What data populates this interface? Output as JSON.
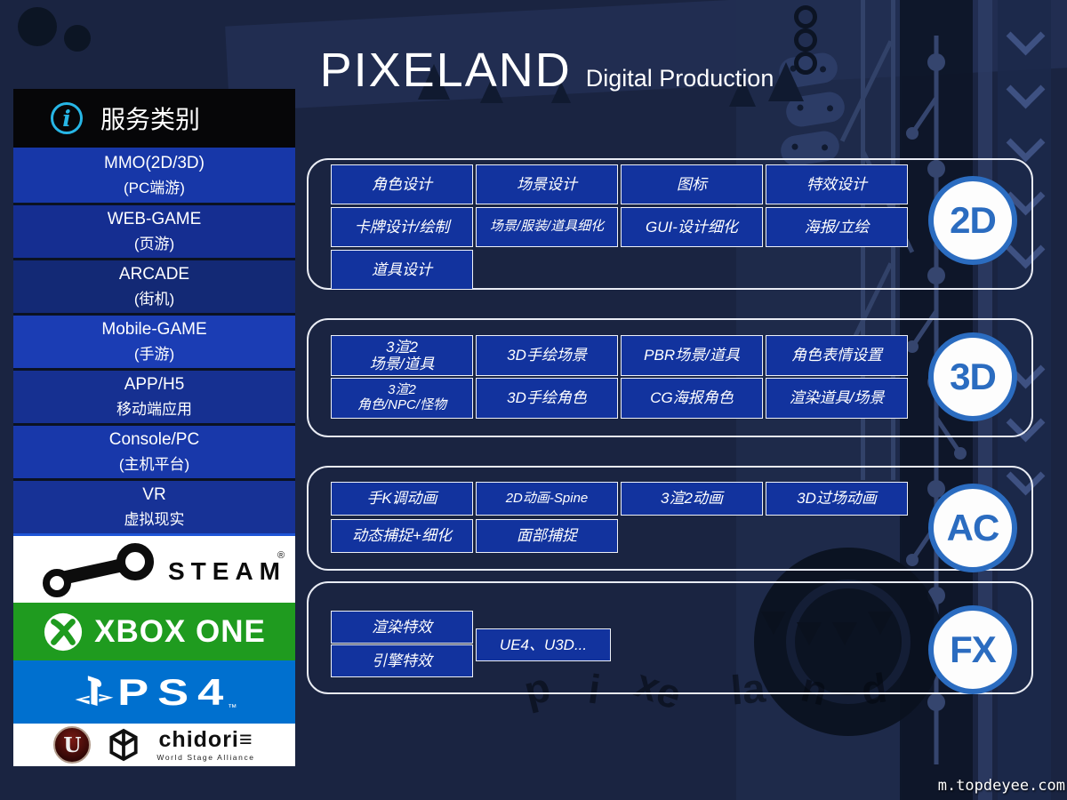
{
  "header": {
    "title": "PIXELAND",
    "subtitle": "Digital Production"
  },
  "watermark": "m.topdeyee.com",
  "sidebar": {
    "header": {
      "label": "服务类别",
      "icon_glyph": "i"
    },
    "items": [
      {
        "id": "mmo-pc",
        "line1": "MMO(2D/3D)",
        "line2": "(PC端游)"
      },
      {
        "id": "web-game",
        "line1": "WEB-GAME",
        "line2": "(页游)"
      },
      {
        "id": "arcade",
        "line1": "ARCADE",
        "line2": "(街机)"
      },
      {
        "id": "mobile-game",
        "line1": "Mobile-GAME",
        "line2": "(手游)"
      },
      {
        "id": "app-h5",
        "line1": "APP/H5",
        "line2": "移动端应用"
      },
      {
        "id": "console-pc",
        "line1": "Console/PC",
        "line2": "(主机平台)"
      },
      {
        "id": "vr",
        "line1": "VR",
        "line2": "虚拟现实"
      }
    ],
    "platform_logos": [
      {
        "id": "steam",
        "label": "STEAM",
        "reg": "®"
      },
      {
        "id": "xbox",
        "label": "XBOX ONE"
      },
      {
        "id": "ps4",
        "label": "PS4",
        "tm": "™"
      },
      {
        "id": "engines",
        "unreal_letter": "U",
        "chidori_label": "chidori",
        "chidori_mark": "≡",
        "chidori_sub": "World Stage Alliance"
      }
    ]
  },
  "sections": [
    {
      "id": "2d",
      "badge": "2D",
      "rows": [
        [
          "角色设计",
          "场景设计",
          "图标",
          "特效设计"
        ],
        [
          "卡牌设计/绘制",
          "场景/服装/道具细化",
          "GUI-设计细化",
          "海报/立绘"
        ],
        [
          "道具设计"
        ]
      ]
    },
    {
      "id": "3d",
      "badge": "3D",
      "rows": [
        [
          "3渲2\n场景/道具",
          "3D手绘场景",
          "PBR场景/道具",
          "角色表情设置"
        ],
        [
          "3渲2\n角色/NPC/怪物",
          "3D手绘角色",
          "CG海报角色",
          "渲染道具/场景"
        ]
      ]
    },
    {
      "id": "ac",
      "badge": "AC",
      "rows": [
        [
          "手K调动画",
          "2D动画-Spine",
          "3渲2动画",
          "3D过场动画"
        ],
        [
          "动态捕捉+细化",
          "面部捕捉"
        ]
      ]
    },
    {
      "id": "fx",
      "badge": "FX",
      "rows": [
        [
          "渲染特效"
        ],
        [
          "引擎特效"
        ]
      ],
      "side_button": "UE4、U3D..."
    }
  ],
  "bg": {
    "letters": [
      "p",
      "i",
      "xe",
      "la",
      "n",
      "d"
    ]
  },
  "colors": {
    "button_blue": "#12339e",
    "badge_blue": "#2b6cc0",
    "info_cyan": "#27b6e6",
    "xbox_green": "#1f9b1f",
    "ps4_blue": "#0070cf",
    "sidebar_blue": "#1737a8",
    "background_navy": "#1a2441"
  }
}
